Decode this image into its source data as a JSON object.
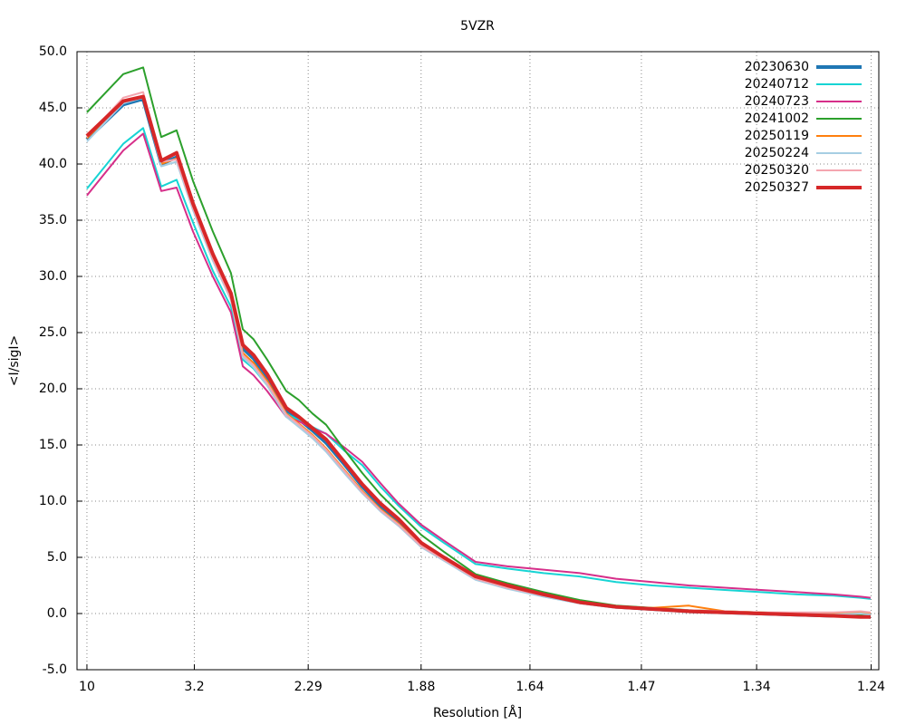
{
  "chart_data": {
    "type": "line",
    "title": "5VZR",
    "x_label": "Resolution [Å]",
    "y_label": "<I/sigI>",
    "x": [
      0.01,
      0.0396,
      0.0559,
      0.0707,
      0.0832,
      0.0966,
      0.1128,
      0.1276,
      0.1373,
      0.1461,
      0.1572,
      0.1728,
      0.1831,
      0.1942,
      0.2053,
      0.2201,
      0.2349,
      0.2497,
      0.2645,
      0.283,
      0.3015,
      0.3274,
      0.3533,
      0.3829,
      0.4125,
      0.4421,
      0.4717,
      0.5013,
      0.5309,
      0.5605,
      0.5901,
      0.6197,
      0.6418,
      0.65
    ],
    "series": [
      {
        "name": "20230630",
        "color": "#1f77b4",
        "width": 4,
        "values": [
          42.2,
          45.3,
          45.8,
          40.0,
          40.6,
          36.3,
          31.7,
          28.3,
          23.6,
          22.7,
          21.0,
          18.0,
          17.3,
          16.3,
          15.2,
          13.3,
          11.3,
          9.6,
          8.2,
          6.2,
          4.9,
          3.2,
          2.4,
          1.6,
          1.0,
          0.6,
          0.4,
          0.2,
          0.1,
          0.0,
          -0.1,
          -0.2,
          -0.2,
          -0.3
        ]
      },
      {
        "name": "20240712",
        "color": "#17d4d4",
        "width": 2,
        "values": [
          37.8,
          41.8,
          43.2,
          38.0,
          38.6,
          34.8,
          30.5,
          27.3,
          22.6,
          21.8,
          20.3,
          17.8,
          17.2,
          16.6,
          16.0,
          14.5,
          13.2,
          11.3,
          9.6,
          7.7,
          6.3,
          4.4,
          4.0,
          3.6,
          3.3,
          2.8,
          2.5,
          2.3,
          2.1,
          1.9,
          1.7,
          1.6,
          1.4,
          1.3
        ]
      },
      {
        "name": "20240723",
        "color": "#d62f8a",
        "width": 2,
        "values": [
          37.2,
          41.2,
          42.7,
          37.6,
          37.9,
          34.0,
          30.0,
          26.8,
          22.0,
          21.2,
          19.8,
          17.5,
          17.1,
          16.5,
          16.0,
          14.8,
          13.5,
          11.6,
          9.8,
          7.9,
          6.5,
          4.6,
          4.2,
          3.9,
          3.6,
          3.1,
          2.8,
          2.5,
          2.3,
          2.1,
          1.9,
          1.7,
          1.5,
          1.4
        ]
      },
      {
        "name": "20241002",
        "color": "#2ca02c",
        "width": 2,
        "values": [
          44.6,
          48.0,
          48.6,
          42.4,
          43.0,
          38.5,
          34.0,
          30.3,
          25.3,
          24.4,
          22.6,
          19.8,
          19.0,
          17.8,
          16.8,
          14.6,
          12.5,
          10.6,
          9.0,
          7.0,
          5.5,
          3.5,
          2.7,
          1.9,
          1.2,
          0.7,
          0.5,
          0.3,
          0.2,
          0.1,
          0.0,
          -0.1,
          -0.1,
          -0.2
        ]
      },
      {
        "name": "20250119",
        "color": "#ff7f0e",
        "width": 2,
        "values": [
          42.3,
          45.5,
          46.0,
          40.0,
          40.5,
          36.3,
          31.8,
          28.2,
          23.2,
          22.3,
          20.7,
          17.8,
          16.9,
          15.9,
          14.7,
          12.8,
          10.9,
          9.3,
          8.0,
          6.0,
          4.8,
          3.1,
          2.3,
          1.6,
          1.0,
          0.6,
          0.5,
          0.7,
          0.2,
          0.1,
          0.0,
          0.0,
          0.1,
          0.0
        ]
      },
      {
        "name": "20250224",
        "color": "#a6cee3",
        "width": 2,
        "values": [
          42.0,
          45.4,
          45.9,
          39.8,
          40.2,
          35.9,
          31.4,
          27.9,
          22.8,
          21.9,
          20.3,
          17.5,
          16.6,
          15.6,
          14.4,
          12.5,
          10.7,
          9.1,
          7.8,
          5.9,
          4.7,
          3.0,
          2.2,
          1.5,
          0.9,
          0.5,
          0.4,
          0.2,
          0.1,
          0.0,
          0.0,
          -0.1,
          0.0,
          -0.1
        ]
      },
      {
        "name": "20250320",
        "color": "#f4a6b0",
        "width": 2,
        "values": [
          42.4,
          45.9,
          46.4,
          40.2,
          40.4,
          36.1,
          31.6,
          28.0,
          23.0,
          22.1,
          20.5,
          17.7,
          16.8,
          15.8,
          14.6,
          12.7,
          10.8,
          9.2,
          7.9,
          6.0,
          4.8,
          3.1,
          2.3,
          1.6,
          1.0,
          0.6,
          0.4,
          0.3,
          0.2,
          0.1,
          0.1,
          0.1,
          0.2,
          0.1
        ]
      },
      {
        "name": "20250327",
        "color": "#d62728",
        "width": 4,
        "values": [
          42.5,
          45.6,
          46.0,
          40.3,
          41.0,
          36.5,
          32.0,
          28.5,
          23.9,
          23.0,
          21.3,
          18.3,
          17.5,
          16.5,
          15.5,
          13.5,
          11.5,
          9.8,
          8.4,
          6.3,
          5.0,
          3.3,
          2.5,
          1.7,
          1.0,
          0.6,
          0.4,
          0.2,
          0.1,
          0.0,
          -0.1,
          -0.2,
          -0.3,
          -0.3
        ]
      }
    ],
    "xlim": [
      0.0019,
      0.6567
    ],
    "xticks": [
      {
        "value": 0.01,
        "label": "10"
      },
      {
        "value": 0.0977,
        "label": "3.2"
      },
      {
        "value": 0.1907,
        "label": "2.29"
      },
      {
        "value": 0.2829,
        "label": "1.88"
      },
      {
        "value": 0.3718,
        "label": "1.64"
      },
      {
        "value": 0.4628,
        "label": "1.47"
      },
      {
        "value": 0.5569,
        "label": "1.34"
      },
      {
        "value": 0.6504,
        "label": "1.24"
      }
    ],
    "ylim": [
      -5,
      50
    ],
    "yticks": [
      {
        "value": -5,
        "label": "-5.0"
      },
      {
        "value": 0,
        "label": "0.0"
      },
      {
        "value": 5,
        "label": "5.0"
      },
      {
        "value": 10,
        "label": "10.0"
      },
      {
        "value": 15,
        "label": "15.0"
      },
      {
        "value": 20,
        "label": "20.0"
      },
      {
        "value": 25,
        "label": "25.0"
      },
      {
        "value": 30,
        "label": "30.0"
      },
      {
        "value": 35,
        "label": "35.0"
      },
      {
        "value": 40,
        "label": "40.0"
      },
      {
        "value": 45,
        "label": "45.0"
      },
      {
        "value": 50,
        "label": "50.0"
      }
    ],
    "grid": true,
    "legend": "top-right"
  }
}
